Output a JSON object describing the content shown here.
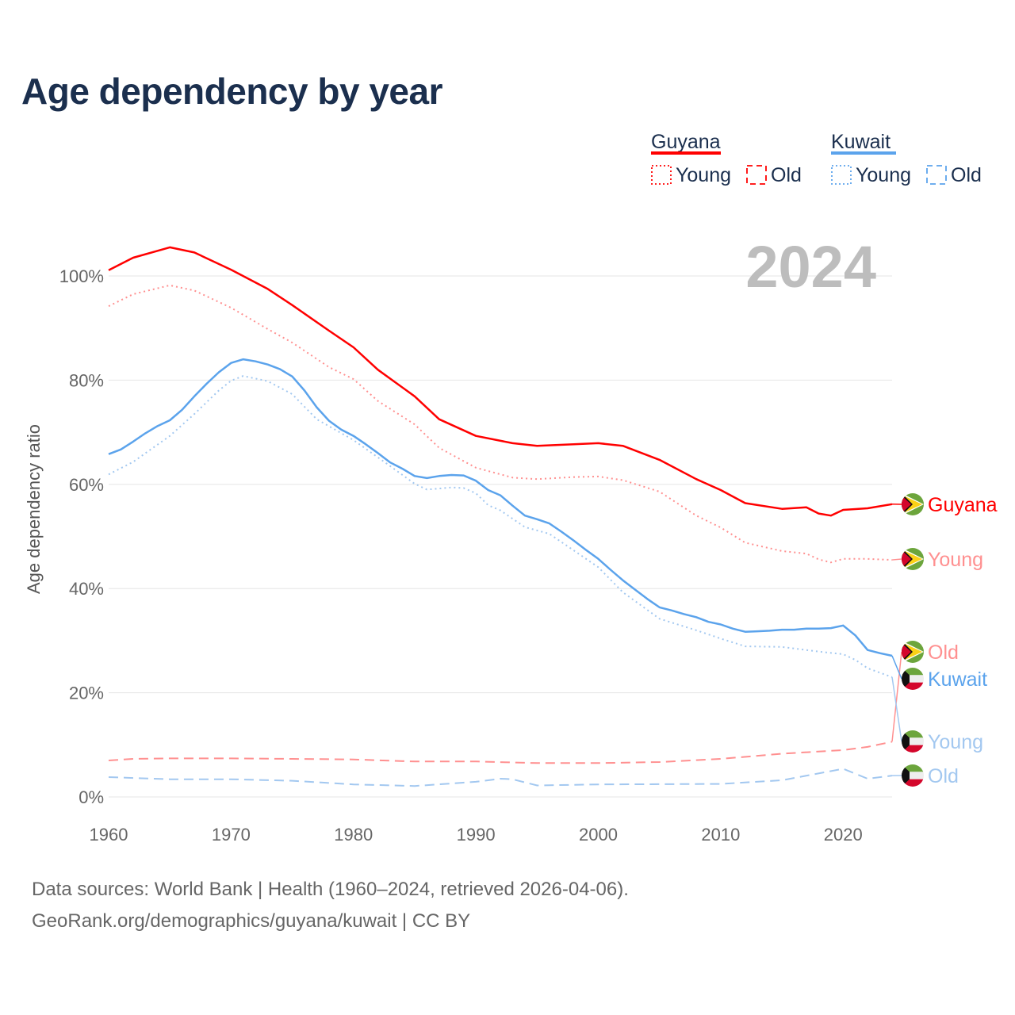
{
  "title": "Age dependency by year",
  "footer": {
    "line1": "Data sources: World Bank | Health (1960–2024, retrieved 2026-04-06).",
    "line2": "GeoRank.org/demographics/guyana/kuwait | CC BY"
  },
  "year_watermark": "2024",
  "legend": {
    "groups": [
      {
        "name": "Guyana",
        "color": "#ff0000",
        "items": [
          "Young",
          "Old"
        ]
      },
      {
        "name": "Kuwait",
        "color": "#5ba3ec",
        "items": [
          "Young",
          "Old"
        ]
      }
    ]
  },
  "chart_data": {
    "type": "line",
    "title": "Age dependency by year",
    "xlabel": "",
    "ylabel": "Age dependency ratio",
    "xlim": [
      1960,
      2024
    ],
    "ylim": [
      0,
      110
    ],
    "x_ticks": [
      "1960",
      "1970",
      "1980",
      "1990",
      "2000",
      "2010",
      "2020"
    ],
    "y_ticks": [
      "0%",
      "20%",
      "40%",
      "60%",
      "80%",
      "100%"
    ],
    "grid": true,
    "series": [
      {
        "name": "Guyana",
        "label": "Guyana",
        "country": "Guyana",
        "style": "solid",
        "color": "#ff0000",
        "x": [
          1960,
          1962,
          1965,
          1967,
          1970,
          1973,
          1975,
          1978,
          1980,
          1982,
          1985,
          1987,
          1990,
          1993,
          1995,
          1998,
          2000,
          2002,
          2005,
          2008,
          2010,
          2012,
          2015,
          2017,
          2018,
          2019,
          2020,
          2022,
          2024
        ],
        "y": [
          101.1,
          103.5,
          105.5,
          104.5,
          101.2,
          97.5,
          94.4,
          89.5,
          86.3,
          82,
          76.9,
          72.5,
          69.3,
          67.9,
          67.4,
          67.7,
          67.9,
          67.4,
          64.7,
          61,
          58.9,
          56.4,
          55.3,
          55.6,
          54.4,
          54.0,
          55.1,
          55.4,
          56.2
        ]
      },
      {
        "name": "Guyana Young",
        "label": "Young",
        "country": "Guyana",
        "style": "dotted",
        "color": "#ff9090",
        "x": [
          1960,
          1962,
          1965,
          1967,
          1970,
          1973,
          1975,
          1978,
          1980,
          1982,
          1985,
          1987,
          1990,
          1993,
          1995,
          1998,
          2000,
          2002,
          2005,
          2008,
          2010,
          2012,
          2015,
          2017,
          2018,
          2019,
          2020,
          2022,
          2024
        ],
        "y": [
          94.2,
          96.5,
          98.2,
          97.2,
          93.9,
          89.8,
          87.2,
          82.5,
          80.2,
          76,
          71.5,
          67,
          63.2,
          61.3,
          61,
          61.4,
          61.5,
          60.8,
          58.6,
          54,
          51.7,
          48.8,
          47.2,
          46.7,
          45.6,
          45.0,
          45.7,
          45.7,
          45.5
        ]
      },
      {
        "name": "Guyana Old",
        "label": "Old",
        "country": "Guyana",
        "style": "dashed",
        "color": "#ff9090",
        "x": [
          1960,
          1962,
          1965,
          1970,
          1975,
          1980,
          1985,
          1990,
          1995,
          2000,
          2005,
          2010,
          2015,
          2020,
          2022,
          2024
        ],
        "y": [
          7.0,
          7.3,
          7.4,
          7.4,
          7.3,
          7.2,
          6.8,
          6.8,
          6.5,
          6.5,
          6.7,
          7.3,
          8.3,
          9.0,
          9.6,
          10.6
        ]
      },
      {
        "name": "Kuwait",
        "label": "Kuwait",
        "country": "Kuwait",
        "style": "solid",
        "color": "#5ba3ec",
        "x": [
          1960,
          1961,
          1962,
          1963,
          1964,
          1965,
          1966,
          1967,
          1968,
          1969,
          1970,
          1971,
          1972,
          1973,
          1974,
          1975,
          1976,
          1977,
          1978,
          1979,
          1980,
          1981,
          1982,
          1983,
          1984,
          1985,
          1986,
          1987,
          1988,
          1989,
          1990,
          1991,
          1992,
          1993,
          1994,
          1995,
          1996,
          1997,
          1998,
          1999,
          2000,
          2001,
          2002,
          2003,
          2004,
          2005,
          2006,
          2007,
          2008,
          2009,
          2010,
          2011,
          2012,
          2013,
          2014,
          2015,
          2016,
          2017,
          2018,
          2019,
          2020,
          2021,
          2022,
          2023,
          2024
        ],
        "y": [
          65.8,
          66.7,
          68.2,
          69.8,
          71.2,
          72.3,
          74.3,
          76.9,
          79.3,
          81.5,
          83.3,
          84.0,
          83.6,
          83.0,
          82.1,
          80.7,
          78.0,
          74.8,
          72.2,
          70.5,
          69.3,
          67.7,
          66.0,
          64.2,
          63.0,
          61.6,
          61.2,
          61.6,
          61.8,
          61.7,
          60.7,
          58.9,
          57.9,
          55.9,
          54.0,
          53.3,
          52.5,
          50.9,
          49.2,
          47.4,
          45.7,
          43.6,
          41.6,
          39.8,
          38.0,
          36.4,
          35.8,
          35.1,
          34.5,
          33.6,
          33.1,
          32.3,
          31.7,
          31.8,
          31.9,
          32.1,
          32.1,
          32.3,
          32.3,
          32.4,
          32.9,
          31.0,
          28.2,
          27.6,
          27.1
        ]
      },
      {
        "name": "Kuwait Young",
        "label": "Young",
        "country": "Kuwait",
        "style": "dotted",
        "color": "#a3c8f0",
        "x": [
          1960,
          1962,
          1965,
          1967,
          1969,
          1970,
          1971,
          1973,
          1975,
          1977,
          1980,
          1983,
          1985,
          1986,
          1988,
          1989,
          1990,
          1991,
          1992,
          1994,
          1996,
          1998,
          2000,
          2002,
          2005,
          2008,
          2010,
          2012,
          2015,
          2018,
          2020,
          2021,
          2022,
          2024
        ],
        "y": [
          61.9,
          64.3,
          69.3,
          73.5,
          78.0,
          79.9,
          80.8,
          79.8,
          77.3,
          72.5,
          68.5,
          63.5,
          60.1,
          59.0,
          59.4,
          59.3,
          58.3,
          56.0,
          55.0,
          51.8,
          50.5,
          47.3,
          44.1,
          39.3,
          34.2,
          32.0,
          30.4,
          28.9,
          28.8,
          27.9,
          27.4,
          26.3,
          24.7,
          23.0
        ]
      },
      {
        "name": "Kuwait Old",
        "label": "Old",
        "country": "Kuwait",
        "style": "dashed",
        "color": "#a3c8f0",
        "x": [
          1960,
          1965,
          1970,
          1975,
          1980,
          1985,
          1990,
          1992,
          1993,
          1995,
          2000,
          2010,
          2015,
          2020,
          2022,
          2024
        ],
        "y": [
          3.8,
          3.4,
          3.4,
          3.1,
          2.4,
          2.1,
          2.9,
          3.5,
          3.4,
          2.2,
          2.4,
          2.5,
          3.2,
          5.4,
          3.5,
          4.1
        ]
      }
    ]
  }
}
